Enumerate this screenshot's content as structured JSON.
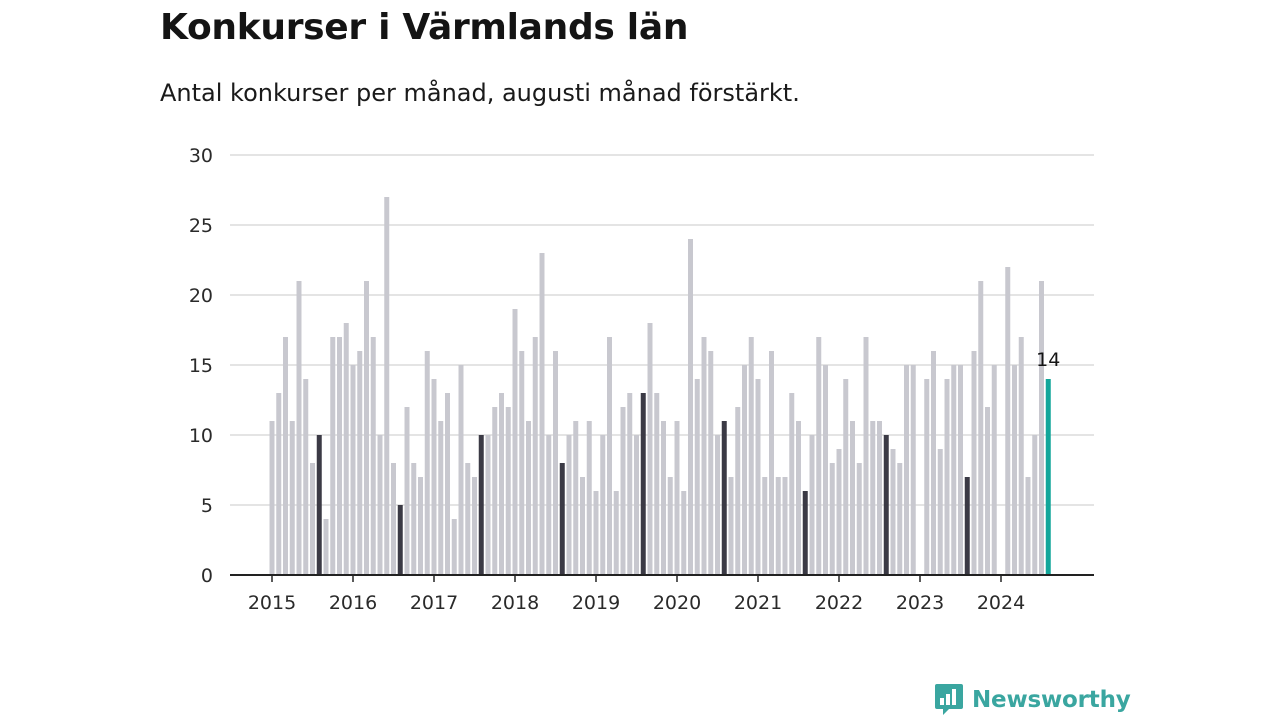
{
  "title": "Konkurser i Värmlands län",
  "subtitle": "Antal konkurser per månad, augusti månad förstärkt.",
  "brand": {
    "name": "Newsworthy",
    "icon": "newsworthy-logo-icon",
    "color": "#3aa6a0"
  },
  "colors": {
    "bar": "#c8c8cf",
    "highlight": "#3b3a45",
    "latest": "#12a69a",
    "grid": "#dcdcdc",
    "axis": "#222222"
  },
  "chart_data": {
    "type": "bar",
    "x_start": "2015-01",
    "x_end": "2024-08",
    "ylim": [
      0,
      30
    ],
    "yticks": [
      0,
      5,
      10,
      15,
      20,
      25,
      30
    ],
    "xticks": [
      "2015",
      "2016",
      "2017",
      "2018",
      "2019",
      "2020",
      "2021",
      "2022",
      "2023",
      "2024"
    ],
    "grid": true,
    "highlight_month": "August",
    "series": [
      {
        "year": "2015",
        "values": [
          11,
          13,
          17,
          11,
          21,
          14,
          8,
          10,
          4,
          17,
          17,
          18
        ]
      },
      {
        "year": "2016",
        "values": [
          15,
          16,
          21,
          17,
          10,
          27,
          8,
          5,
          12,
          8,
          7,
          16
        ]
      },
      {
        "year": "2017",
        "values": [
          14,
          11,
          13,
          4,
          15,
          8,
          7,
          10,
          10,
          12,
          13,
          12
        ]
      },
      {
        "year": "2018",
        "values": [
          19,
          16,
          11,
          17,
          23,
          10,
          16,
          8,
          10,
          11,
          7,
          11
        ]
      },
      {
        "year": "2019",
        "values": [
          6,
          10,
          17,
          6,
          12,
          13,
          10,
          13,
          18,
          13,
          11,
          7
        ]
      },
      {
        "year": "2020",
        "values": [
          11,
          6,
          24,
          14,
          17,
          16,
          10,
          11,
          7,
          12,
          15,
          17
        ]
      },
      {
        "year": "2021",
        "values": [
          14,
          7,
          16,
          7,
          7,
          13,
          11,
          6,
          10,
          17,
          15,
          8
        ]
      },
      {
        "year": "2022",
        "values": [
          9,
          14,
          11,
          8,
          17,
          11,
          11,
          10,
          9,
          8,
          15,
          15
        ]
      },
      {
        "year": "2023",
        "values": [
          0,
          14,
          16,
          9,
          14,
          15,
          15,
          7,
          16,
          21,
          12,
          15
        ]
      },
      {
        "year": "2024",
        "values": [
          0,
          22,
          15,
          17,
          7,
          10,
          21,
          14
        ]
      }
    ],
    "latest_label": "14"
  }
}
